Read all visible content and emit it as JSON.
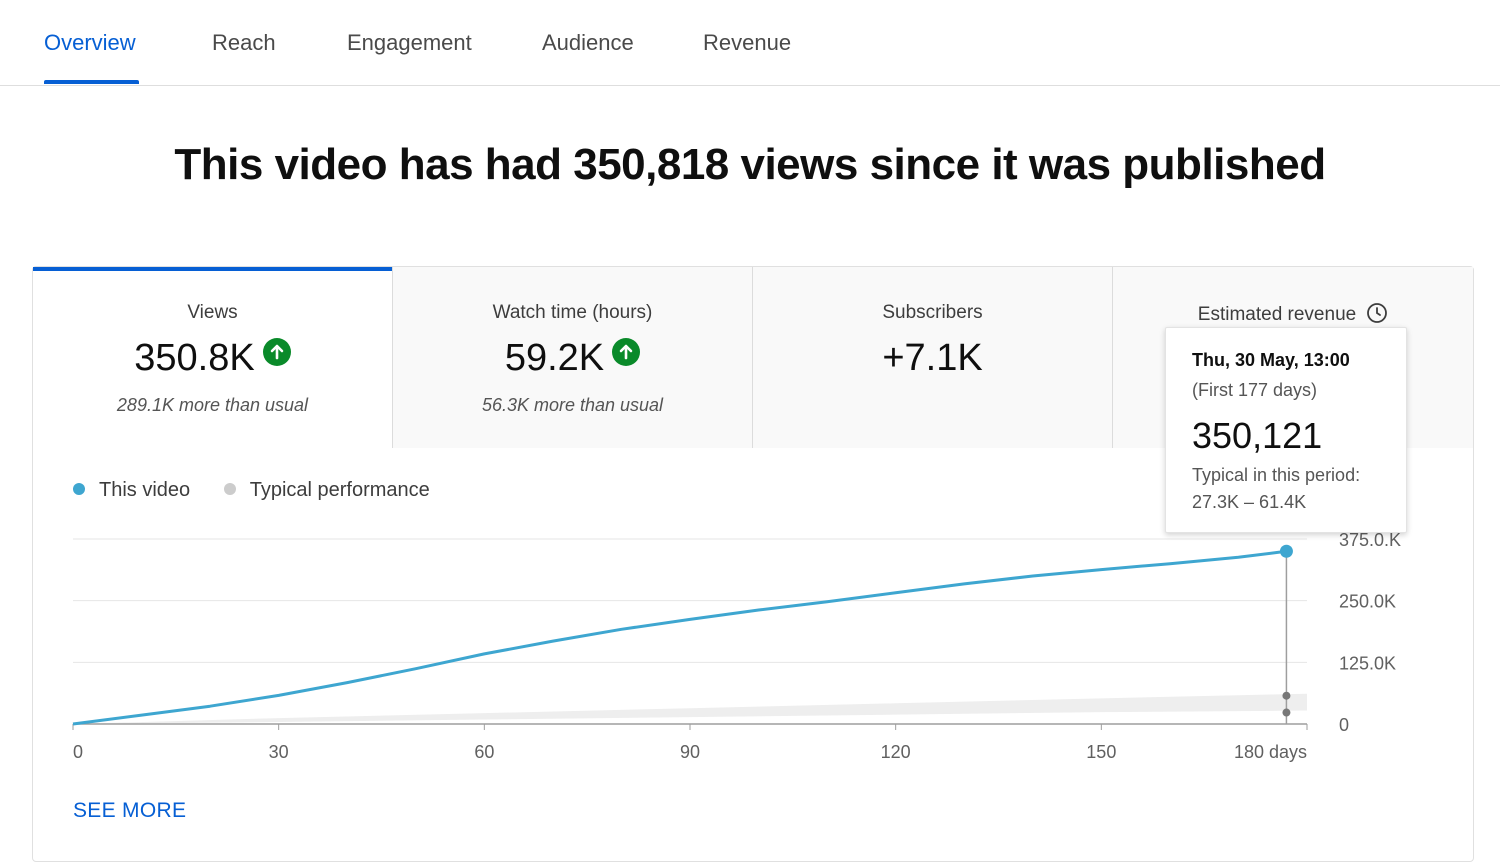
{
  "tabs": [
    {
      "label": "Overview",
      "active": true
    },
    {
      "label": "Reach",
      "active": false
    },
    {
      "label": "Engagement",
      "active": false
    },
    {
      "label": "Audience",
      "active": false
    },
    {
      "label": "Revenue",
      "active": false
    }
  ],
  "headline": "This video has had 350,818 views since it was published",
  "metrics": [
    {
      "label": "Views",
      "value": "350.8K",
      "trend": "up",
      "sub": "289.1K more than usual"
    },
    {
      "label": "Watch time (hours)",
      "value": "59.2K",
      "trend": "up",
      "sub": "56.3K more than usual"
    },
    {
      "label": "Subscribers",
      "value": "+7.1K"
    },
    {
      "label": "Estimated revenue",
      "icon": "clock-icon"
    }
  ],
  "legend": [
    {
      "label": "This video",
      "color": "#3ea6d0"
    },
    {
      "label": "Typical performance",
      "color": "#cccccc"
    }
  ],
  "tooltip": {
    "date": "Thu, 30 May, 13:00",
    "period": "(First 177 days)",
    "value": "350,121",
    "typical_label": "Typical in this period:",
    "typical_range": "27.3K – 61.4K"
  },
  "see_more": "SEE MORE",
  "chart_data": {
    "type": "line",
    "x_ticks": [
      0,
      30,
      60,
      90,
      120,
      150,
      180
    ],
    "x_tick_labels": [
      "0",
      "30",
      "60",
      "90",
      "120",
      "150",
      "180 days"
    ],
    "y_ticks": [
      0,
      125000,
      250000,
      375000
    ],
    "y_tick_labels": [
      "0",
      "125.0K",
      "250.0K",
      "375.0.K"
    ],
    "xlim": [
      0,
      180
    ],
    "ylim": [
      0,
      375000
    ],
    "series": [
      {
        "name": "This video",
        "color": "#3ea6d0",
        "x": [
          0,
          10,
          20,
          30,
          40,
          50,
          60,
          70,
          80,
          90,
          100,
          110,
          120,
          130,
          140,
          150,
          160,
          170,
          177
        ],
        "y": [
          0,
          18000,
          36000,
          58000,
          84000,
          112000,
          142000,
          168000,
          192000,
          212000,
          231000,
          248000,
          266000,
          284000,
          300000,
          313000,
          325000,
          338000,
          350121
        ]
      }
    ],
    "typical_band": {
      "color": "#eeeeee",
      "x": [
        0,
        30,
        60,
        90,
        120,
        150,
        180
      ],
      "low": [
        0,
        4000,
        9000,
        14000,
        19000,
        24000,
        27300
      ],
      "high": [
        0,
        12000,
        22000,
        32000,
        42000,
        52000,
        61400
      ]
    },
    "cursor_x": 177,
    "grid": true
  }
}
